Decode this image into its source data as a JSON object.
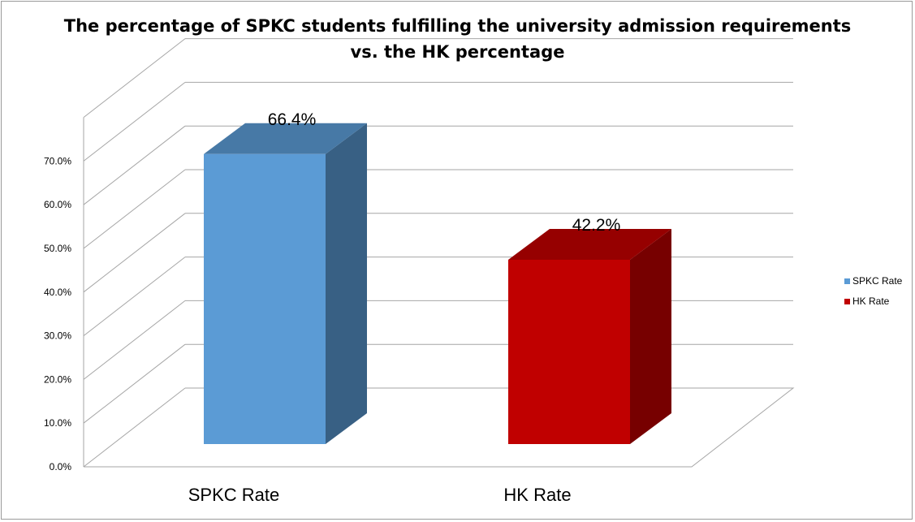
{
  "chart_data": {
    "type": "bar",
    "title_lines": [
      "The percentage of SPKC students fulfilling the university admission requirements",
      "vs. the HK percentage"
    ],
    "categories": [
      "SPKC Rate",
      "HK Rate"
    ],
    "values": [
      66.4,
      42.2
    ],
    "data_labels": [
      "66.4%",
      "42.2%"
    ],
    "series": [
      {
        "name": "SPKC Rate",
        "values": [
          66.4,
          null
        ],
        "color": "#5b9bd5"
      },
      {
        "name": "HK Rate",
        "values": [
          null,
          42.2
        ],
        "color": "#c00000"
      }
    ],
    "y_ticks": [
      "0.0%",
      "10.0%",
      "20.0%",
      "30.0%",
      "40.0%",
      "50.0%",
      "60.0%",
      "70.0%"
    ],
    "ylim": [
      0,
      80
    ],
    "grid": true,
    "style": "3d",
    "legend_position": "right",
    "xlabel": "",
    "ylabel": ""
  }
}
